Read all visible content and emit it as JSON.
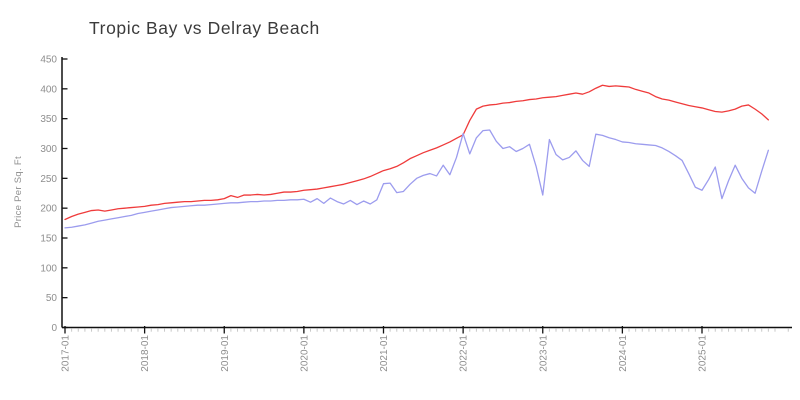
{
  "chart_data": {
    "type": "line",
    "title": "Tropic Bay vs Delray Beach",
    "xlabel": "",
    "ylabel": "Price Per Sq. Ft",
    "ylim": [
      0,
      450
    ],
    "y_ticks": [
      0,
      50,
      100,
      150,
      200,
      250,
      300,
      350,
      400,
      450
    ],
    "x_tick_labels": [
      "2017-01",
      "2018-01",
      "2019-01",
      "2020-01",
      "2021-01",
      "2022-01",
      "2023-01",
      "2024-01",
      "2025-01"
    ],
    "x_minor_tick_unit": "month",
    "x_start_month": "2017-01",
    "x_end_month": "2025-11",
    "points_per_series": 107,
    "grid": false,
    "legend": "none",
    "series": [
      {
        "name": "Delray Beach",
        "color_role": "red-line",
        "color": "#ef3b3b",
        "values": [
          181,
          186,
          190,
          193,
          196,
          197,
          195,
          197,
          199,
          200,
          201,
          202,
          203,
          205,
          206,
          208,
          209,
          210,
          211,
          211,
          212,
          213,
          213,
          214,
          216,
          221,
          218,
          222,
          222,
          223,
          222,
          223,
          225,
          227,
          227,
          228,
          230,
          231,
          232,
          234,
          236,
          238,
          240,
          243,
          246,
          249,
          253,
          258,
          263,
          266,
          270,
          276,
          283,
          288,
          293,
          297,
          301,
          306,
          311,
          317,
          323,
          347,
          366,
          371,
          373,
          374,
          376,
          377,
          379,
          380,
          382,
          383,
          385,
          386,
          387,
          389,
          391,
          393,
          391,
          395,
          401,
          406,
          404,
          405,
          404,
          403,
          399,
          396,
          393,
          387,
          383,
          381,
          378,
          375,
          372,
          370,
          368,
          365,
          362,
          361,
          363,
          366,
          371,
          373,
          366,
          358,
          348
        ]
      },
      {
        "name": "Tropic Bay",
        "color_role": "blue-line",
        "color": "#9c9cee",
        "values": [
          167,
          168,
          170,
          172,
          175,
          178,
          180,
          182,
          184,
          186,
          188,
          191,
          193,
          195,
          197,
          199,
          201,
          202,
          203,
          204,
          205,
          205,
          206,
          207,
          208,
          209,
          209,
          210,
          211,
          211,
          212,
          212,
          213,
          213,
          214,
          214,
          215,
          210,
          216,
          208,
          217,
          211,
          207,
          213,
          206,
          212,
          207,
          214,
          241,
          242,
          226,
          228,
          240,
          250,
          255,
          258,
          254,
          272,
          256,
          285,
          325,
          291,
          318,
          330,
          331,
          312,
          300,
          303,
          295,
          300,
          307,
          270,
          222,
          315,
          290,
          281,
          285,
          296,
          280,
          270,
          324,
          322,
          318,
          315,
          311,
          310,
          308,
          307,
          306,
          305,
          301,
          295,
          288,
          280,
          258,
          235,
          230,
          248,
          269,
          216,
          246,
          272,
          250,
          234,
          225,
          262,
          297
        ]
      }
    ],
    "colors": {
      "axis": "#111111",
      "major_tick": "#111111",
      "minor_tick": "#c8c8c8",
      "tick_label": "#8e8e8e",
      "title": "#3b3b3b"
    }
  }
}
